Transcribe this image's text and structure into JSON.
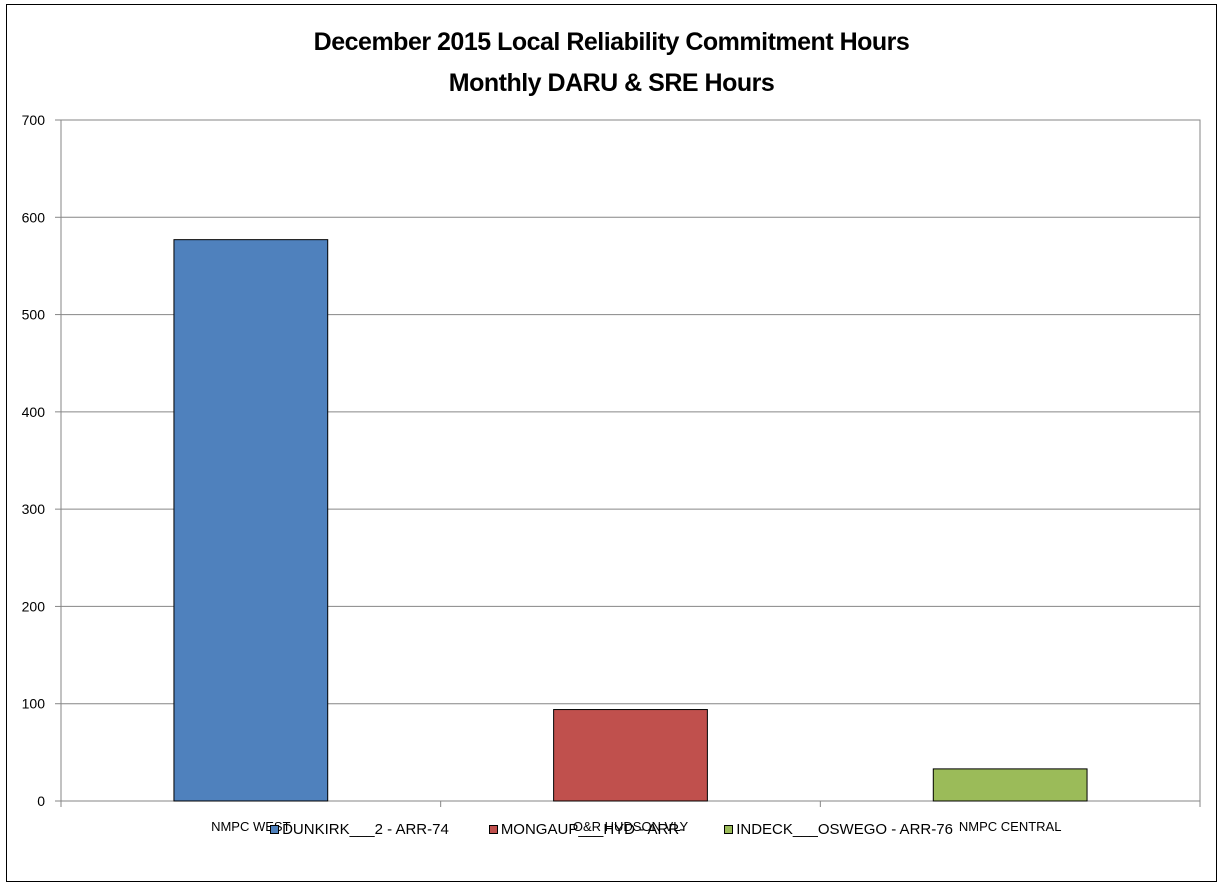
{
  "chart_data": {
    "type": "bar",
    "title": "December 2015 Local Reliability Commitment Hours",
    "subtitle": "Monthly DARU & SRE Hours",
    "categories": [
      "NMPC WEST",
      "O&R HUDSON VLY",
      "NMPC CENTRAL"
    ],
    "series": [
      {
        "name": "DUNKIRK___2 - ARR-74",
        "category": "NMPC WEST",
        "value": 577,
        "color": "#4f81bd"
      },
      {
        "name": "MONGAUP___HYD - ARR-",
        "category": "O&R HUDSON VLY",
        "value": 94,
        "color": "#c0504d"
      },
      {
        "name": "INDECK___OSWEGO - ARR-76",
        "category": "NMPC CENTRAL",
        "value": 33,
        "color": "#9bbb59"
      }
    ],
    "ylim": [
      0,
      700
    ],
    "yticks": [
      0,
      100,
      200,
      300,
      400,
      500,
      600,
      700
    ],
    "grid": true,
    "legend_position": "bottom"
  }
}
